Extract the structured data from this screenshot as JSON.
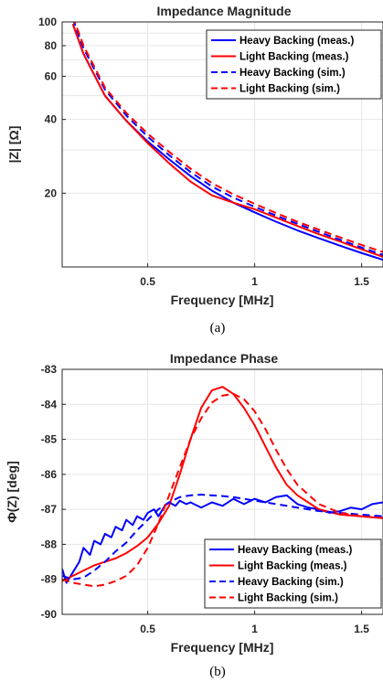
{
  "chart_data": [
    {
      "type": "line",
      "title": "Impedance Magnitude",
      "xlabel": "Frequency [MHz]",
      "ylabel": "|Z| [Ω]",
      "caption": "(a)",
      "xlim": [
        0.1,
        1.6
      ],
      "ylim": [
        10,
        100
      ],
      "yscale": "log",
      "xticks": [
        0.5,
        1,
        1.5
      ],
      "yticks": [
        20,
        40,
        60,
        80,
        100
      ],
      "grid": true,
      "legend_position": "top-right",
      "series": [
        {
          "name": "Heavy Backing (meas.)",
          "color": "#0000ff",
          "style": "solid",
          "x": [
            0.15,
            0.2,
            0.3,
            0.4,
            0.5,
            0.6,
            0.7,
            0.8,
            0.9,
            1.0,
            1.1,
            1.2,
            1.3,
            1.4,
            1.5,
            1.6
          ],
          "y": [
            98,
            74,
            50,
            39.5,
            32.5,
            27.5,
            23.5,
            20.5,
            18.3,
            16.7,
            15.3,
            14.1,
            13.1,
            12.2,
            11.4,
            10.7
          ]
        },
        {
          "name": "Light Backing (meas.)",
          "color": "#ff0000",
          "style": "solid",
          "x": [
            0.15,
            0.2,
            0.3,
            0.4,
            0.5,
            0.6,
            0.7,
            0.8,
            0.9,
            1.0,
            1.1,
            1.2,
            1.3,
            1.4,
            1.5,
            1.6
          ],
          "y": [
            98,
            74,
            50,
            39.5,
            32,
            26.5,
            22.3,
            19.6,
            18.3,
            17.2,
            15.9,
            14.7,
            13.6,
            12.7,
            11.8,
            11.0
          ]
        },
        {
          "name": "Heavy Backing (sim.)",
          "color": "#0000ff",
          "style": "dashed",
          "x": [
            0.15,
            0.2,
            0.3,
            0.4,
            0.5,
            0.6,
            0.7,
            0.8,
            0.9,
            1.0,
            1.1,
            1.2,
            1.3,
            1.4,
            1.5,
            1.6
          ],
          "y": [
            103,
            78,
            53,
            41.5,
            34,
            28.6,
            24.4,
            21.3,
            19.2,
            17.6,
            16.2,
            15.0,
            13.9,
            12.9,
            12.0,
            11.2
          ]
        },
        {
          "name": "Light Backing (sim.)",
          "color": "#ff0000",
          "style": "dashed",
          "x": [
            0.15,
            0.2,
            0.3,
            0.4,
            0.5,
            0.6,
            0.7,
            0.8,
            0.9,
            1.0,
            1.1,
            1.2,
            1.3,
            1.4,
            1.5,
            1.6
          ],
          "y": [
            105,
            80,
            54,
            42.5,
            35,
            29.5,
            25.2,
            22.0,
            19.8,
            18.1,
            16.6,
            15.3,
            14.2,
            13.2,
            12.3,
            11.5
          ]
        }
      ]
    },
    {
      "type": "line",
      "title": "Impedance Phase",
      "xlabel": "Frequency [MHz]",
      "ylabel": "Φ(Z)  [deg]",
      "caption": "(b)",
      "xlim": [
        0.1,
        1.6
      ],
      "ylim": [
        -90,
        -83
      ],
      "yscale": "linear",
      "xticks": [
        0.5,
        1,
        1.5
      ],
      "yticks": [
        -90,
        -89,
        -88,
        -87,
        -86,
        -85,
        -84,
        -83
      ],
      "grid": true,
      "legend_position": "bottom-right",
      "series": [
        {
          "name": "Heavy Backing (meas.)",
          "color": "#0000ff",
          "style": "solid",
          "x": [
            0.1,
            0.12,
            0.15,
            0.18,
            0.2,
            0.23,
            0.25,
            0.28,
            0.3,
            0.33,
            0.35,
            0.38,
            0.4,
            0.43,
            0.45,
            0.48,
            0.5,
            0.53,
            0.55,
            0.58,
            0.6,
            0.63,
            0.65,
            0.68,
            0.7,
            0.75,
            0.8,
            0.85,
            0.9,
            0.95,
            1.0,
            1.05,
            1.1,
            1.15,
            1.2,
            1.25,
            1.3,
            1.35,
            1.4,
            1.45,
            1.5,
            1.55,
            1.6
          ],
          "y": [
            -88.7,
            -89.1,
            -88.8,
            -88.5,
            -88.1,
            -88.3,
            -87.9,
            -88.0,
            -87.7,
            -87.8,
            -87.5,
            -87.6,
            -87.3,
            -87.45,
            -87.2,
            -87.3,
            -87.1,
            -87.0,
            -87.2,
            -86.9,
            -86.8,
            -86.9,
            -86.75,
            -86.85,
            -86.8,
            -86.95,
            -86.8,
            -86.9,
            -86.7,
            -86.85,
            -86.7,
            -86.8,
            -86.65,
            -86.6,
            -86.85,
            -86.95,
            -87.0,
            -87.1,
            -87.05,
            -86.95,
            -87.0,
            -86.85,
            -86.8
          ]
        },
        {
          "name": "Light Backing (meas.)",
          "color": "#ff0000",
          "style": "solid",
          "x": [
            0.1,
            0.15,
            0.2,
            0.25,
            0.3,
            0.35,
            0.4,
            0.45,
            0.5,
            0.55,
            0.6,
            0.65,
            0.7,
            0.75,
            0.8,
            0.85,
            0.9,
            0.95,
            1.0,
            1.05,
            1.1,
            1.15,
            1.2,
            1.3,
            1.4,
            1.5,
            1.6
          ],
          "y": [
            -89.05,
            -88.9,
            -88.75,
            -88.6,
            -88.5,
            -88.4,
            -88.25,
            -88.05,
            -87.8,
            -87.4,
            -86.9,
            -86.0,
            -85.0,
            -84.1,
            -83.6,
            -83.5,
            -83.7,
            -84.1,
            -84.6,
            -85.2,
            -85.8,
            -86.3,
            -86.6,
            -87.0,
            -87.15,
            -87.2,
            -87.25
          ]
        },
        {
          "name": "Heavy Backing (sim.)",
          "color": "#0000ff",
          "style": "dashed",
          "x": [
            0.1,
            0.15,
            0.2,
            0.25,
            0.3,
            0.35,
            0.4,
            0.45,
            0.5,
            0.55,
            0.6,
            0.65,
            0.7,
            0.75,
            0.8,
            0.85,
            0.9,
            0.95,
            1.0,
            1.1,
            1.2,
            1.3,
            1.4,
            1.5,
            1.6
          ],
          "y": [
            -88.9,
            -89.0,
            -88.95,
            -88.75,
            -88.5,
            -88.2,
            -87.95,
            -87.6,
            -87.3,
            -87.0,
            -86.8,
            -86.65,
            -86.6,
            -86.58,
            -86.6,
            -86.62,
            -86.65,
            -86.7,
            -86.75,
            -86.85,
            -86.95,
            -87.05,
            -87.1,
            -87.15,
            -87.2
          ]
        },
        {
          "name": "Light Backing (sim.)",
          "color": "#ff0000",
          "style": "dashed",
          "x": [
            0.1,
            0.15,
            0.2,
            0.25,
            0.3,
            0.35,
            0.4,
            0.45,
            0.5,
            0.55,
            0.6,
            0.65,
            0.7,
            0.75,
            0.8,
            0.85,
            0.9,
            0.95,
            1.0,
            1.05,
            1.1,
            1.15,
            1.2,
            1.3,
            1.4,
            1.5,
            1.6
          ],
          "y": [
            -89.0,
            -89.1,
            -89.15,
            -89.2,
            -89.15,
            -89.05,
            -88.9,
            -88.6,
            -88.1,
            -87.4,
            -86.6,
            -85.8,
            -85.0,
            -84.4,
            -83.95,
            -83.75,
            -83.7,
            -83.85,
            -84.2,
            -84.7,
            -85.3,
            -85.85,
            -86.3,
            -86.85,
            -87.1,
            -87.2,
            -87.25
          ]
        }
      ]
    }
  ]
}
